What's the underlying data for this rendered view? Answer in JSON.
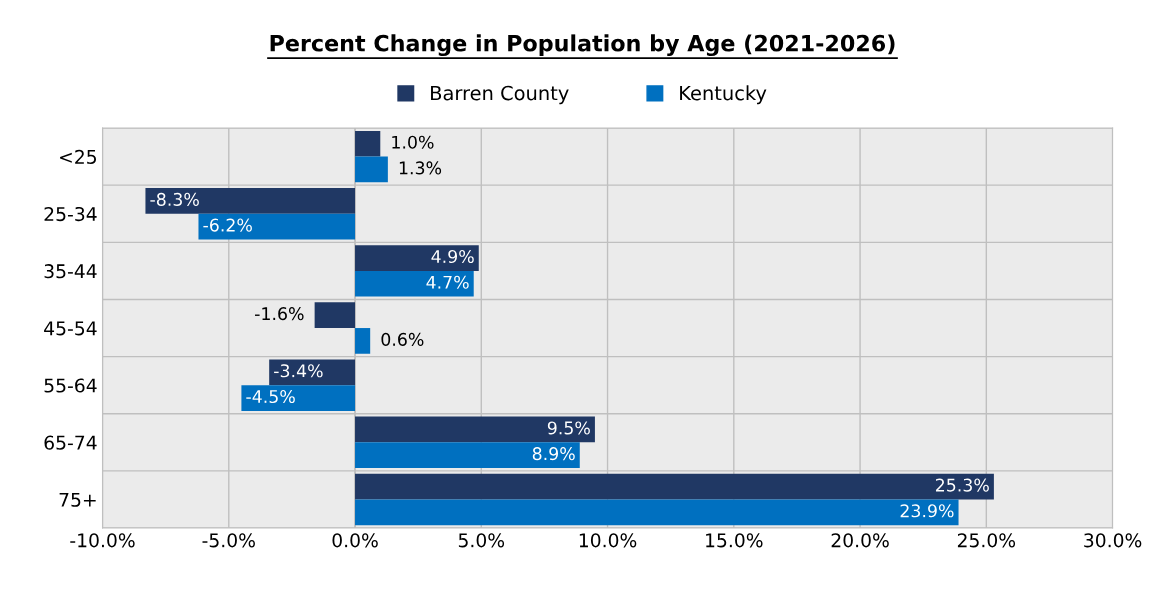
{
  "chart_data": {
    "type": "bar",
    "orientation": "horizontal",
    "title": "Percent Change in Population by Age (2021-2026)",
    "categories": [
      "<25",
      "25-34",
      "35-44",
      "45-54",
      "55-64",
      "65-74",
      "75+"
    ],
    "series": [
      {
        "name": "Barren County",
        "color": "#203864",
        "values": [
          1.0,
          -8.3,
          4.9,
          -1.6,
          -3.4,
          9.5,
          25.3
        ],
        "value_labels": [
          "1.0%",
          "-8.3%",
          "4.9%",
          "-1.6%",
          "-3.4%",
          "9.5%",
          "25.3%"
        ]
      },
      {
        "name": "Kentucky",
        "color": "#0070c0",
        "values": [
          1.3,
          -6.2,
          4.7,
          0.6,
          -4.5,
          8.9,
          23.9
        ],
        "value_labels": [
          "1.3%",
          "-6.2%",
          "4.7%",
          "0.6%",
          "-4.5%",
          "8.9%",
          "23.9%"
        ]
      }
    ],
    "xlim": [
      -10,
      30
    ],
    "xticks": [
      {
        "value": -10,
        "label": "-10.0%"
      },
      {
        "value": -5,
        "label": "-5.0%"
      },
      {
        "value": 0,
        "label": "0.0%"
      },
      {
        "value": 5,
        "label": "5.0%"
      },
      {
        "value": 10,
        "label": "10.0%"
      },
      {
        "value": 15,
        "label": "15.0%"
      },
      {
        "value": 20,
        "label": "20.0%"
      },
      {
        "value": 25,
        "label": "25.0%"
      },
      {
        "value": 30,
        "label": "30.0%"
      }
    ],
    "grid": true,
    "legend": "top"
  }
}
